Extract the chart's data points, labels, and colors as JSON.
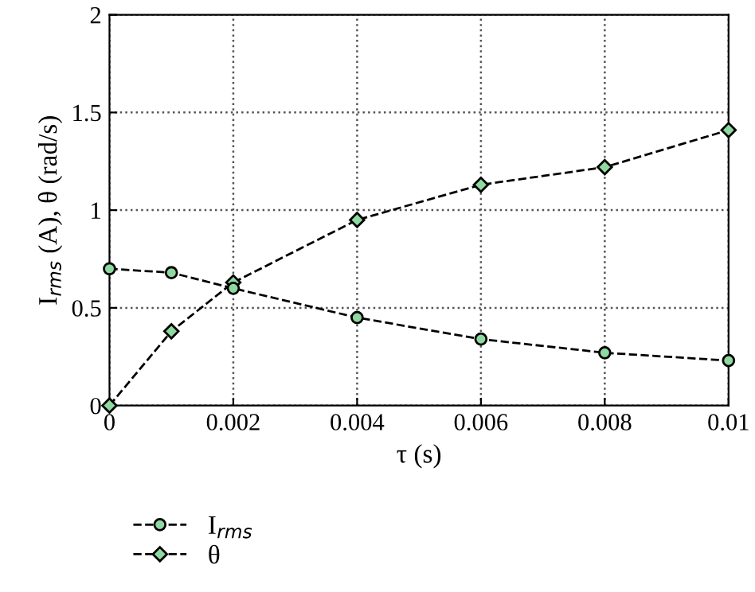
{
  "chart_data": {
    "type": "line",
    "xlabel": "τ (s)",
    "ylabel": "I$_{rms}$ (A), θ (rad/s)",
    "x": [
      0,
      0.001,
      0.002,
      0.004,
      0.006,
      0.008,
      0.01
    ],
    "series": [
      {
        "name": "I$_{rms}$",
        "color": "#8fd9a0",
        "marker": "circle",
        "values": [
          0.7,
          0.68,
          0.6,
          0.45,
          0.34,
          0.27,
          0.23
        ]
      },
      {
        "name": "θ",
        "color": "#8fd9a0",
        "marker": "diamond",
        "values": [
          0,
          0.38,
          0.63,
          0.95,
          1.13,
          1.22,
          1.41
        ]
      }
    ],
    "xlim": [
      0,
      0.01
    ],
    "xticks": [
      0,
      0.002,
      0.004,
      0.006,
      0.008,
      0.01
    ],
    "ylim": [
      0,
      2
    ],
    "yticks": [
      0,
      0.5,
      1,
      1.5,
      2
    ],
    "grid": true,
    "legend": "bottom left",
    "line_style": "dashed"
  }
}
